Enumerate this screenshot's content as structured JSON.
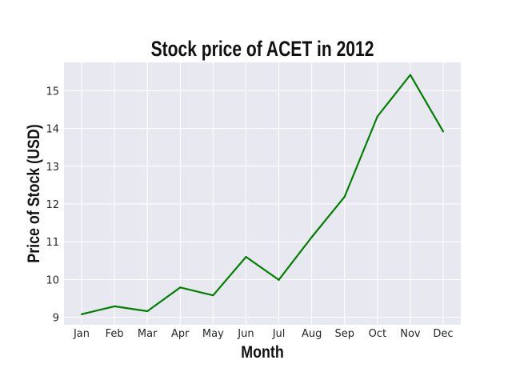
{
  "chart_data": {
    "type": "line",
    "title": "Stock price of ACET in 2012",
    "xlabel": "Month",
    "ylabel": "Price of Stock (USD)",
    "categories": [
      "Jan",
      "Feb",
      "Mar",
      "Apr",
      "May",
      "Jun",
      "Jul",
      "Aug",
      "Sep",
      "Oct",
      "Nov",
      "Dec"
    ],
    "series": [
      {
        "values": [
          9.08,
          9.29,
          9.16,
          9.79,
          9.58,
          10.6,
          9.99,
          11.12,
          12.19,
          14.32,
          15.42,
          13.92
        ]
      }
    ],
    "ylim": [
      8.8,
      15.75
    ],
    "yticks": [
      9,
      10,
      11,
      12,
      13,
      14,
      15
    ],
    "grid": true,
    "line_color": "#008000",
    "plot_background": "#e8e8f0",
    "grid_color": "#ffffff"
  }
}
